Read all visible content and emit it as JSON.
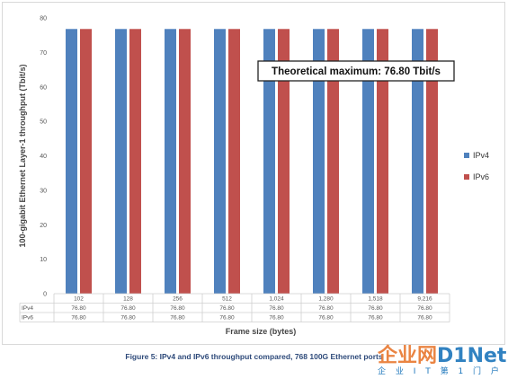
{
  "chart_data": {
    "type": "bar",
    "categories": [
      "102",
      "128",
      "256",
      "512",
      "1,024",
      "1,280",
      "1,518",
      "9,216"
    ],
    "series": [
      {
        "name": "IPv4",
        "color": "#4f81bd",
        "values": [
          76.8,
          76.8,
          76.8,
          76.8,
          76.8,
          76.8,
          76.8,
          76.8
        ],
        "labels": [
          "76.80",
          "76.80",
          "76.80",
          "76.80",
          "76.80",
          "76.80",
          "76.80",
          "76.80"
        ]
      },
      {
        "name": "IPv6",
        "color": "#c0504d",
        "values": [
          76.8,
          76.8,
          76.8,
          76.8,
          76.8,
          76.8,
          76.8,
          76.8
        ],
        "labels": [
          "76.80",
          "76.80",
          "76.80",
          "76.80",
          "76.80",
          "76.80",
          "76.80",
          "76.80"
        ]
      }
    ],
    "xlabel": "Frame size (bytes)",
    "ylabel": "100-gigabit Ethernet Layer-1 throughput (Tbit/s)",
    "ylim": [
      0,
      80
    ],
    "yticks": [
      "0",
      "10",
      "20",
      "30",
      "40",
      "50",
      "60",
      "70",
      "80"
    ],
    "annotation": "Theoretical maximum: 76.80 Tbit/s",
    "legend_position": "right",
    "grid": false,
    "data_table": true
  },
  "caption": "Figure 5: IPv4 and IPv6 throughput compared, 768 100G Ethernet ports",
  "watermark": {
    "logo_left": "企业网",
    "logo_right": "D1Net",
    "sub": "企 业 I T 第 1 门 户"
  }
}
